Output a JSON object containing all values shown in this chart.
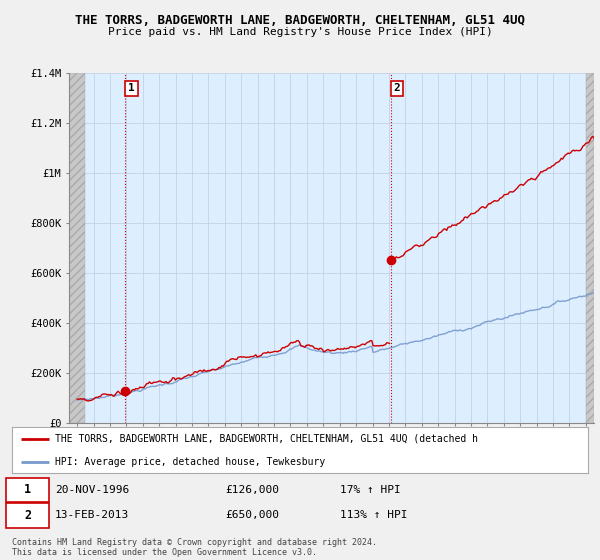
{
  "title": "THE TORRS, BADGEWORTH LANE, BADGEWORTH, CHELTENHAM, GL51 4UQ",
  "subtitle": "Price paid vs. HM Land Registry's House Price Index (HPI)",
  "bg_color": "#f0f0f0",
  "plot_bg_color": "#ddeeff",
  "red_line_color": "#cc0000",
  "blue_line_color": "#7799cc",
  "sale1_year": 1996.9,
  "sale1_price": 126000,
  "sale1_label": "1",
  "sale1_date": "20-NOV-1996",
  "sale1_hpi": "17% ↑ HPI",
  "sale2_year": 2013.1,
  "sale2_price": 650000,
  "sale2_label": "2",
  "sale2_date": "13-FEB-2013",
  "sale2_hpi": "113% ↑ HPI",
  "ylim_max": 1400000,
  "xlim_min": 1993.5,
  "xlim_max": 2025.5,
  "ylabel_ticks": [
    0,
    200000,
    400000,
    600000,
    800000,
    1000000,
    1200000,
    1400000
  ],
  "ylabel_labels": [
    "£0",
    "£200K",
    "£400K",
    "£600K",
    "£800K",
    "£1M",
    "£1.2M",
    "£1.4M"
  ],
  "legend_line1": "THE TORRS, BADGEWORTH LANE, BADGEWORTH, CHELTENHAM, GL51 4UQ (detached h",
  "legend_line2": "HPI: Average price, detached house, Tewkesbury",
  "footnote": "Contains HM Land Registry data © Crown copyright and database right 2024.\nThis data is licensed under the Open Government Licence v3.0."
}
